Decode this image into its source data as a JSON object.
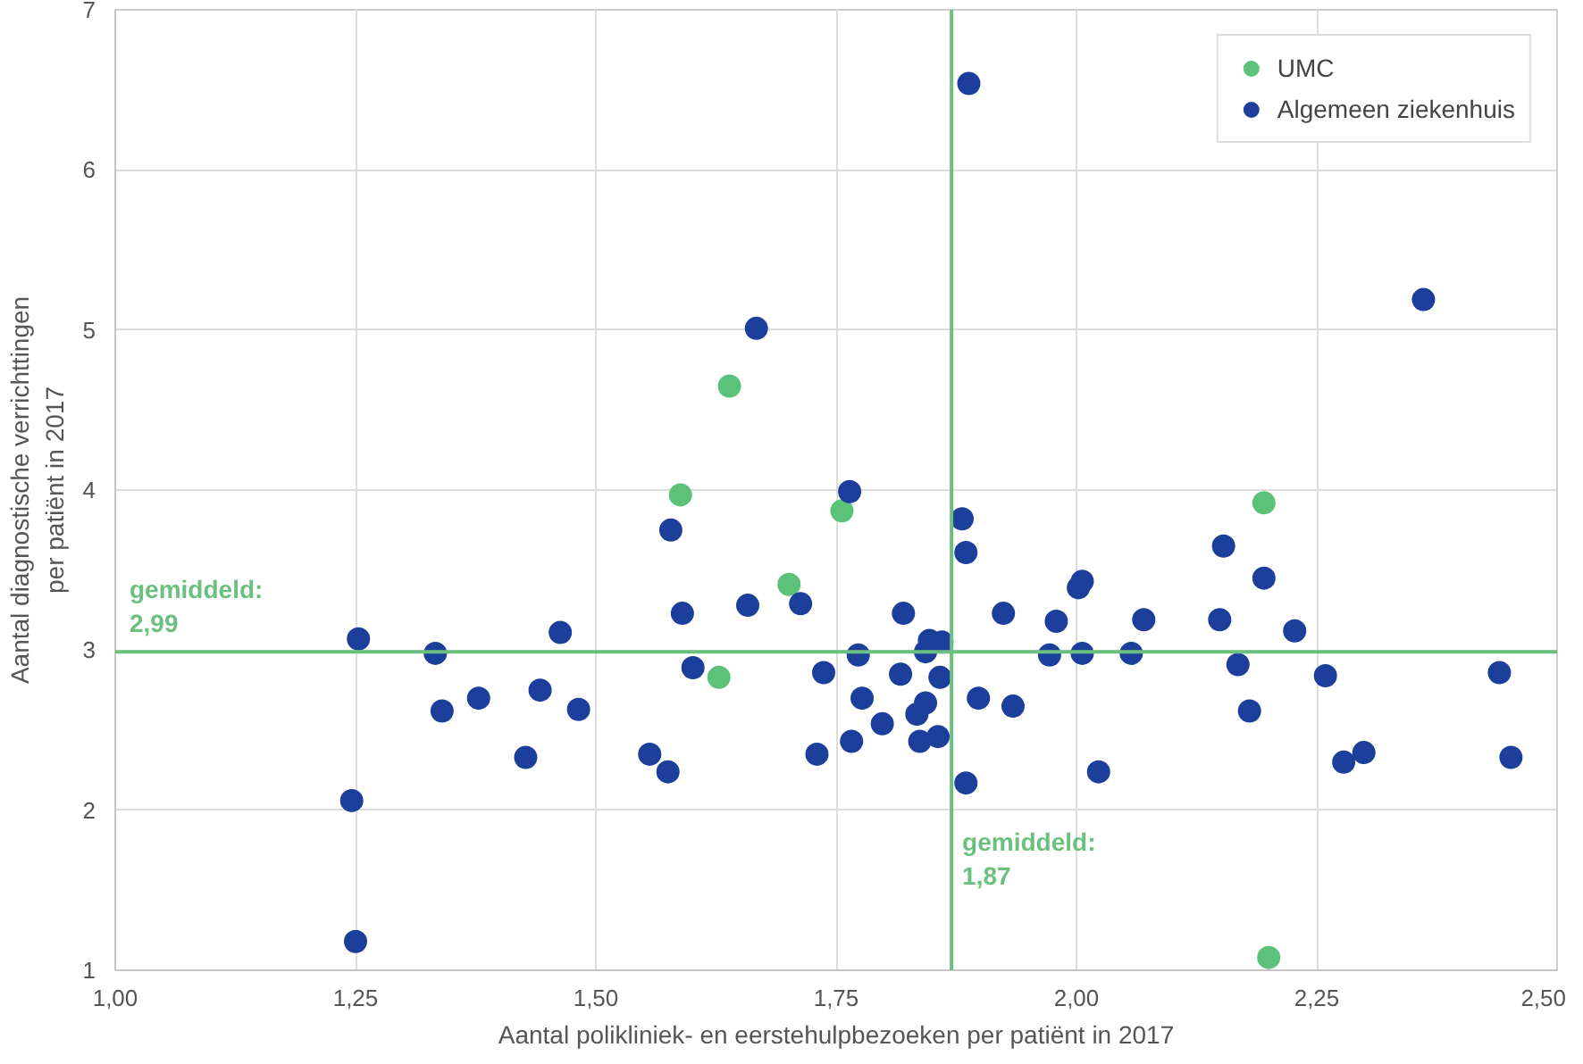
{
  "chart_data": {
    "type": "scatter",
    "xlabel": "Aantal polikliniek- en eerstehulpbezoeken per patiënt in 2017",
    "ylabel": "Aantal diagnostische verrichttingen\nper patiënt in 2017",
    "xlim": [
      1.0,
      2.5
    ],
    "xticks": [
      {
        "value": 1.0,
        "label": "1,00"
      },
      {
        "value": 1.25,
        "label": "1,25"
      },
      {
        "value": 1.5,
        "label": "1,50"
      },
      {
        "value": 1.75,
        "label": "1,75"
      },
      {
        "value": 2.0,
        "label": "2,00"
      },
      {
        "value": 2.25,
        "label": "2,25"
      },
      {
        "value": 2.5,
        "label": "2,50"
      }
    ],
    "ylim": [
      1,
      7
    ],
    "yticks": [
      1,
      2,
      3,
      4,
      5,
      6,
      7
    ],
    "grid": true,
    "legend": "top right",
    "marker": "circle",
    "ref_lines": [
      {
        "axis": "y",
        "value": 2.99,
        "label": "gemiddeld:\n2,99",
        "color": "#6cc07f"
      },
      {
        "axis": "x",
        "value": 1.87,
        "label": "gemiddeld:\n1,87",
        "color": "#6cc07f"
      }
    ],
    "series": [
      {
        "name": "UMC",
        "color": "#5cc27a",
        "x": [
          1.639,
          1.588,
          1.756,
          1.701,
          1.628,
          2.195,
          2.2
        ],
        "values": [
          4.65,
          3.97,
          3.87,
          3.41,
          2.83,
          3.92,
          1.08
        ]
      },
      {
        "name": "Algemeen ziekenhuis",
        "color": "#1c3f9b",
        "x": [
          1.888,
          1.667,
          2.361,
          1.764,
          1.578,
          1.881,
          1.885,
          2.153,
          2.195,
          2.002,
          2.006,
          1.59,
          1.658,
          1.713,
          1.82,
          1.924,
          1.979,
          2.07,
          2.149,
          2.227,
          1.253,
          1.463,
          1.333,
          1.847,
          1.86,
          1.843,
          1.773,
          1.601,
          1.737,
          1.817,
          1.858,
          1.972,
          2.006,
          2.057,
          2.168,
          2.259,
          2.44,
          1.34,
          1.378,
          1.442,
          1.482,
          1.777,
          1.798,
          1.843,
          1.834,
          1.837,
          1.856,
          1.898,
          1.934,
          2.18,
          1.427,
          1.556,
          1.575,
          1.73,
          1.766,
          1.885,
          2.023,
          2.278,
          2.299,
          2.452,
          1.246,
          1.25
        ],
        "values": [
          6.54,
          5.01,
          5.19,
          3.99,
          3.75,
          3.82,
          3.61,
          3.65,
          3.45,
          3.39,
          3.43,
          3.23,
          3.28,
          3.29,
          3.23,
          3.23,
          3.18,
          3.19,
          3.19,
          3.12,
          3.07,
          3.11,
          2.98,
          3.06,
          3.05,
          2.99,
          2.97,
          2.89,
          2.86,
          2.85,
          2.83,
          2.97,
          2.98,
          2.98,
          2.91,
          2.84,
          2.86,
          2.62,
          2.7,
          2.75,
          2.63,
          2.7,
          2.54,
          2.67,
          2.6,
          2.43,
          2.46,
          2.7,
          2.65,
          2.62,
          2.33,
          2.35,
          2.24,
          2.35,
          2.43,
          2.17,
          2.24,
          2.3,
          2.36,
          2.33,
          2.06,
          1.18
        ]
      }
    ]
  }
}
